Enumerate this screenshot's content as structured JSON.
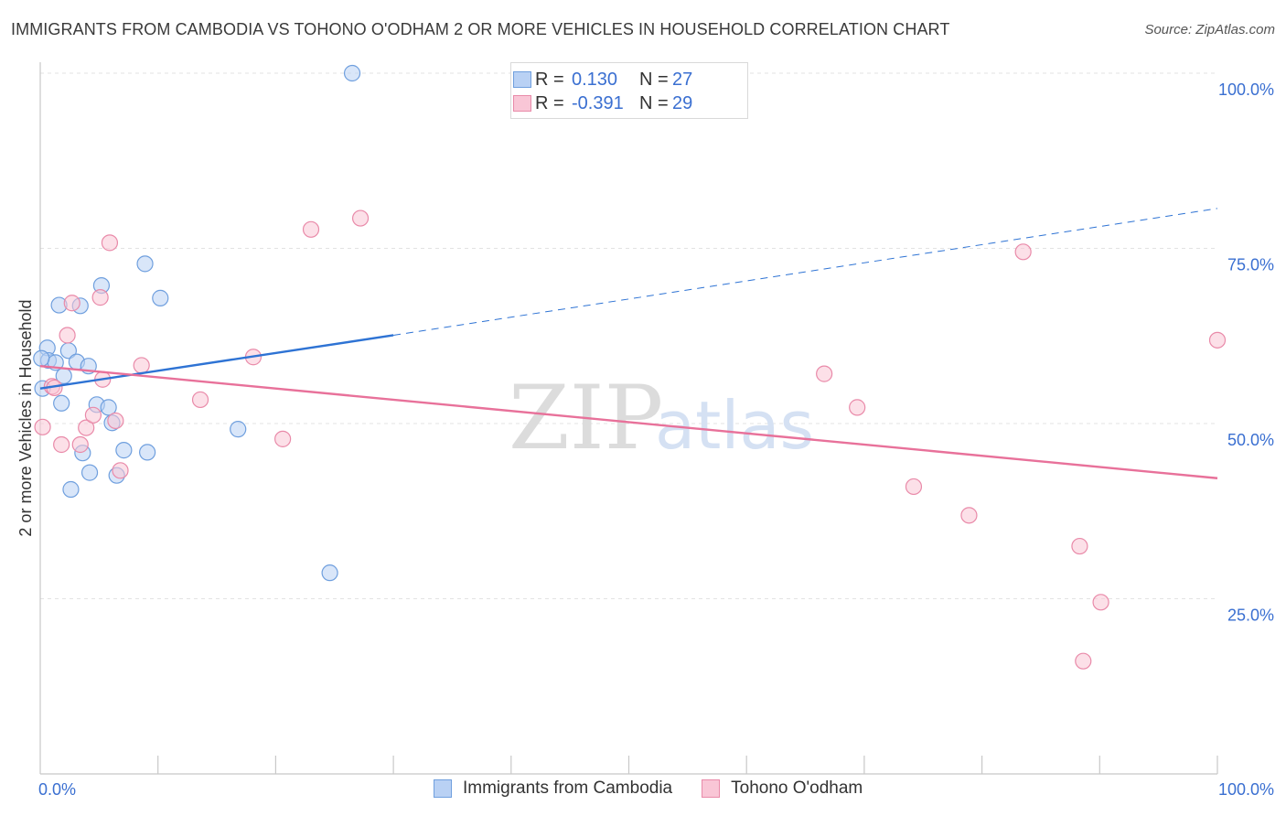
{
  "title": "IMMIGRANTS FROM CAMBODIA VS TOHONO O'ODHAM 2 OR MORE VEHICLES IN HOUSEHOLD CORRELATION CHART",
  "source": "Source: ZipAtlas.com",
  "watermark": {
    "zip": "ZIP",
    "atlas": "atlas"
  },
  "colors": {
    "blue_fill": "#b9d1f4",
    "blue_stroke": "#6f9fde",
    "blue_line": "#2e73d4",
    "pink_fill": "#f9c6d6",
    "pink_stroke": "#e98aa9",
    "pink_line": "#e8719a",
    "tick_text": "#3a6fd1",
    "grid": "#e3e3e3"
  },
  "legend": {
    "rows": [
      {
        "r_label": "R =",
        "r_value": "0.130",
        "n_label": "N =",
        "n_value": "27",
        "color_key": "blue"
      },
      {
        "r_label": "R =",
        "r_value": "-0.391",
        "n_label": "N =",
        "n_value": "29",
        "color_key": "pink"
      }
    ]
  },
  "bottom_legend": [
    {
      "label": "Immigrants from Cambodia",
      "color_key": "blue"
    },
    {
      "label": "Tohono O'odham",
      "color_key": "pink"
    }
  ],
  "chart_data": {
    "type": "scatter",
    "title": "IMMIGRANTS FROM CAMBODIA VS TOHONO O'ODHAM 2 OR MORE VEHICLES IN HOUSEHOLD CORRELATION CHART",
    "xlabel": "",
    "ylabel": "2 or more Vehicles in Household",
    "xlim": [
      0,
      100
    ],
    "ylim": [
      0,
      100
    ],
    "x_tick_labels": [
      {
        "value": 0,
        "label": "0.0%"
      },
      {
        "value": 100,
        "label": "100.0%"
      }
    ],
    "y_tick_labels": [
      {
        "value": 25,
        "label": "25.0%"
      },
      {
        "value": 50,
        "label": "50.0%"
      },
      {
        "value": 75,
        "label": "75.0%"
      },
      {
        "value": 100,
        "label": "100.0%"
      }
    ],
    "grid": true,
    "series": [
      {
        "name": "Immigrants from Cambodia",
        "color_key": "blue",
        "r": 0.13,
        "n": 27,
        "trend": {
          "x0": 0,
          "y0": 55.0,
          "x1": 30,
          "y1": 62.6,
          "dashed_to_x": 100,
          "dashed_to_y": 80.7
        },
        "points": [
          [
            26.5,
            100.0
          ],
          [
            0.2,
            55.0
          ],
          [
            0.6,
            60.8
          ],
          [
            0.7,
            59.0
          ],
          [
            1.3,
            58.7
          ],
          [
            1.6,
            66.9
          ],
          [
            1.8,
            52.9
          ],
          [
            2.0,
            56.8
          ],
          [
            2.4,
            60.4
          ],
          [
            2.6,
            40.6
          ],
          [
            3.1,
            58.8
          ],
          [
            3.4,
            66.8
          ],
          [
            3.6,
            45.8
          ],
          [
            4.1,
            58.2
          ],
          [
            4.2,
            43.0
          ],
          [
            4.8,
            52.7
          ],
          [
            5.2,
            69.7
          ],
          [
            5.8,
            52.3
          ],
          [
            6.1,
            50.1
          ],
          [
            6.5,
            42.6
          ],
          [
            7.1,
            46.2
          ],
          [
            8.9,
            72.8
          ],
          [
            9.1,
            45.9
          ],
          [
            10.2,
            67.9
          ],
          [
            16.8,
            49.2
          ],
          [
            24.6,
            28.7
          ],
          [
            0.1,
            59.3
          ]
        ]
      },
      {
        "name": "Tohono O'odham",
        "color_key": "pink",
        "r": -0.391,
        "n": 29,
        "trend": {
          "x0": 0,
          "y0": 58.2,
          "x1": 100,
          "y1": 42.2
        },
        "points": [
          [
            0.2,
            49.5
          ],
          [
            1.0,
            55.3
          ],
          [
            1.2,
            55.1
          ],
          [
            1.8,
            47.0
          ],
          [
            2.3,
            62.6
          ],
          [
            2.7,
            67.2
          ],
          [
            3.4,
            47.0
          ],
          [
            3.9,
            49.4
          ],
          [
            4.5,
            51.2
          ],
          [
            5.1,
            68.0
          ],
          [
            5.3,
            56.3
          ],
          [
            5.9,
            75.8
          ],
          [
            6.4,
            50.4
          ],
          [
            6.8,
            43.3
          ],
          [
            8.6,
            58.3
          ],
          [
            13.6,
            53.4
          ],
          [
            18.1,
            59.5
          ],
          [
            20.6,
            47.8
          ],
          [
            23.0,
            77.7
          ],
          [
            27.2,
            79.3
          ],
          [
            66.6,
            57.1
          ],
          [
            69.4,
            52.3
          ],
          [
            74.2,
            41.0
          ],
          [
            78.9,
            36.9
          ],
          [
            83.5,
            74.5
          ],
          [
            88.3,
            32.5
          ],
          [
            88.6,
            16.1
          ],
          [
            90.1,
            24.5
          ],
          [
            100.0,
            61.9
          ]
        ]
      }
    ]
  }
}
